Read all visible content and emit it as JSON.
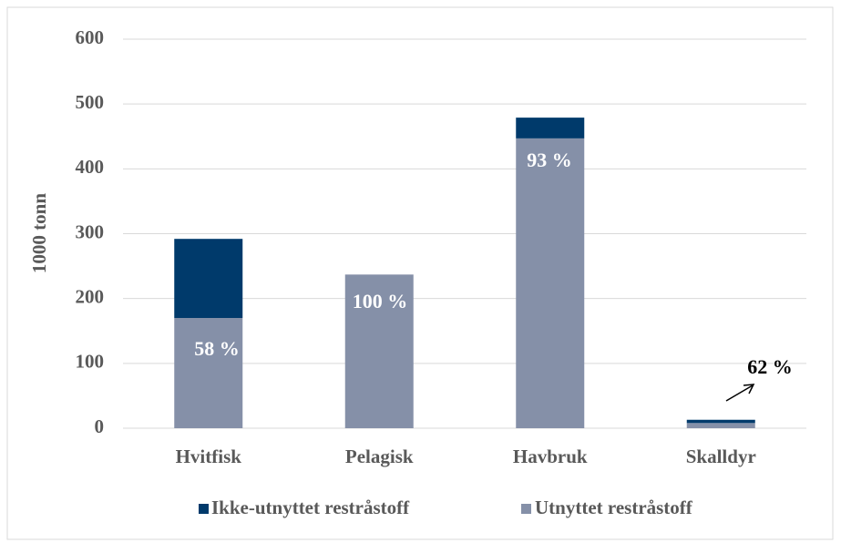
{
  "chart_data": {
    "type": "stacked_bar",
    "y_label": "1000 tonn",
    "categories": [
      "Hvitfisk",
      "Pelagisk",
      "Havbruk",
      "Skalldyr"
    ],
    "series": [
      {
        "name": "Ikke-utnyttet restråstoff",
        "color": "#003a6b",
        "values": [
          122,
          0,
          32,
          5
        ]
      },
      {
        "name": "Utnyttet restråstoff",
        "color": "#8590a8",
        "values": [
          170,
          237,
          447,
          8
        ]
      }
    ],
    "annotations": [
      "58 %",
      "100 %",
      "93 %",
      "62 %"
    ],
    "ylim": [
      0,
      600
    ],
    "yticks": [
      0,
      100,
      200,
      300,
      400,
      500,
      600
    ],
    "grid": true,
    "legend": "bottom"
  }
}
